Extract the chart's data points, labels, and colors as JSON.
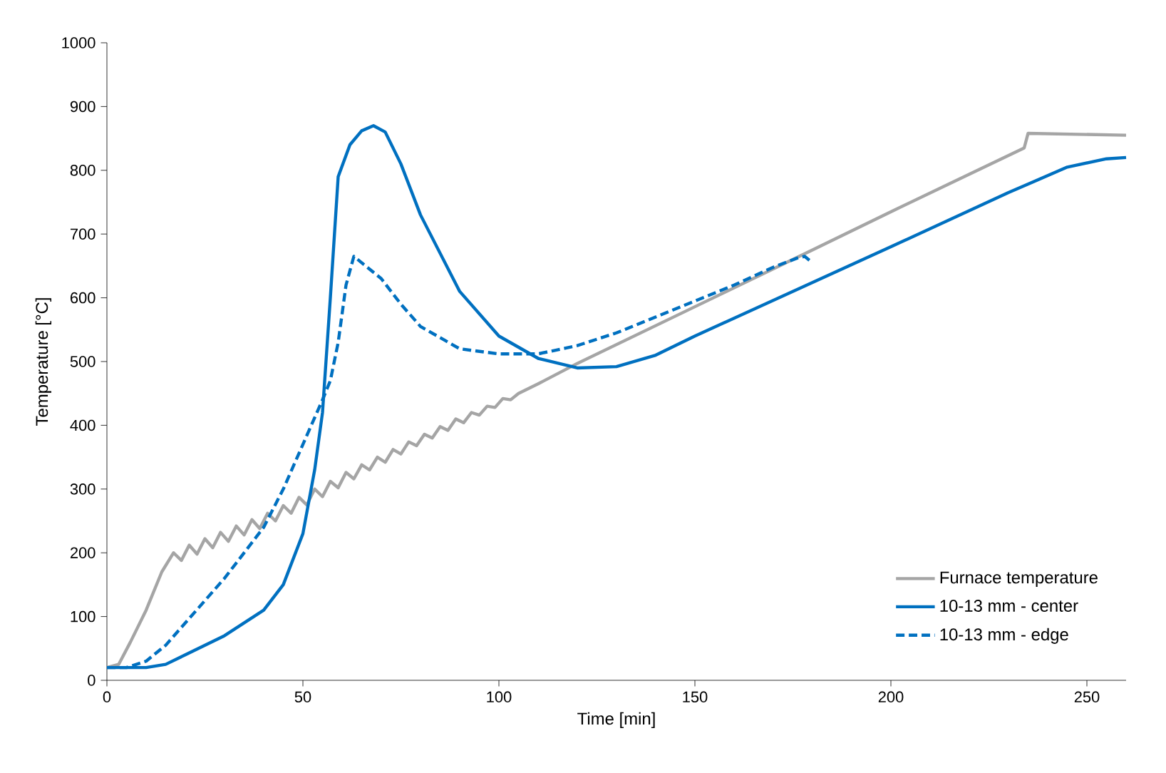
{
  "chart_data": {
    "type": "line",
    "xlabel": "Time [min]",
    "ylabel": "Temperature [°C]",
    "xlim": [
      0,
      260
    ],
    "ylim": [
      0,
      1000
    ],
    "xticks": [
      0,
      50,
      100,
      150,
      200,
      250
    ],
    "yticks": [
      0,
      100,
      200,
      300,
      400,
      500,
      600,
      700,
      800,
      900,
      1000
    ],
    "grid": false,
    "legend": "bottom right",
    "marker": "none",
    "series": [
      {
        "name": "Furnace temperature",
        "color": "#a5a5a5",
        "line_style": "solid",
        "x": [
          0,
          3,
          6,
          10,
          14,
          17,
          19,
          21,
          23,
          25,
          27,
          29,
          31,
          33,
          35,
          37,
          39,
          41,
          43,
          45,
          47,
          49,
          51,
          53,
          55,
          57,
          59,
          61,
          63,
          65,
          67,
          69,
          71,
          73,
          75,
          77,
          79,
          81,
          83,
          85,
          87,
          89,
          91,
          93,
          95,
          97,
          99,
          101,
          103,
          105,
          110,
          120,
          150,
          180,
          200,
          234,
          235,
          260
        ],
        "values": [
          20,
          25,
          60,
          110,
          170,
          200,
          188,
          212,
          198,
          222,
          208,
          232,
          218,
          242,
          228,
          252,
          238,
          262,
          250,
          274,
          262,
          287,
          275,
          300,
          288,
          312,
          302,
          326,
          316,
          338,
          330,
          350,
          342,
          362,
          355,
          374,
          368,
          386,
          380,
          398,
          392,
          410,
          404,
          420,
          416,
          430,
          428,
          442,
          440,
          450,
          465,
          497,
          586,
          675,
          735,
          835,
          858,
          855
        ]
      },
      {
        "name": "10-13 mm - center",
        "color": "#0070c0",
        "line_style": "solid",
        "x": [
          0,
          10,
          15,
          20,
          30,
          40,
          45,
          50,
          53,
          55,
          57,
          59,
          62,
          65,
          68,
          71,
          75,
          80,
          90,
          100,
          110,
          120,
          130,
          140,
          150,
          175,
          200,
          230,
          245,
          255,
          260
        ],
        "values": [
          20,
          20,
          25,
          40,
          70,
          110,
          150,
          230,
          330,
          420,
          600,
          790,
          840,
          862,
          870,
          860,
          810,
          730,
          610,
          540,
          505,
          490,
          492,
          510,
          540,
          610,
          680,
          765,
          805,
          818,
          820
        ]
      },
      {
        "name": "10-13 mm - edge",
        "color": "#0070c0",
        "line_style": "dashed",
        "x": [
          0,
          5,
          10,
          15,
          20,
          30,
          40,
          45,
          50,
          55,
          57,
          59,
          61,
          63,
          66,
          70,
          75,
          80,
          90,
          100,
          110,
          120,
          130,
          140,
          150,
          160,
          170,
          176,
          178,
          180
        ],
        "values": [
          20,
          20,
          30,
          55,
          90,
          160,
          240,
          300,
          370,
          440,
          470,
          530,
          620,
          665,
          650,
          630,
          590,
          555,
          520,
          512,
          512,
          525,
          545,
          570,
          595,
          620,
          648,
          662,
          665,
          655
        ]
      }
    ]
  }
}
